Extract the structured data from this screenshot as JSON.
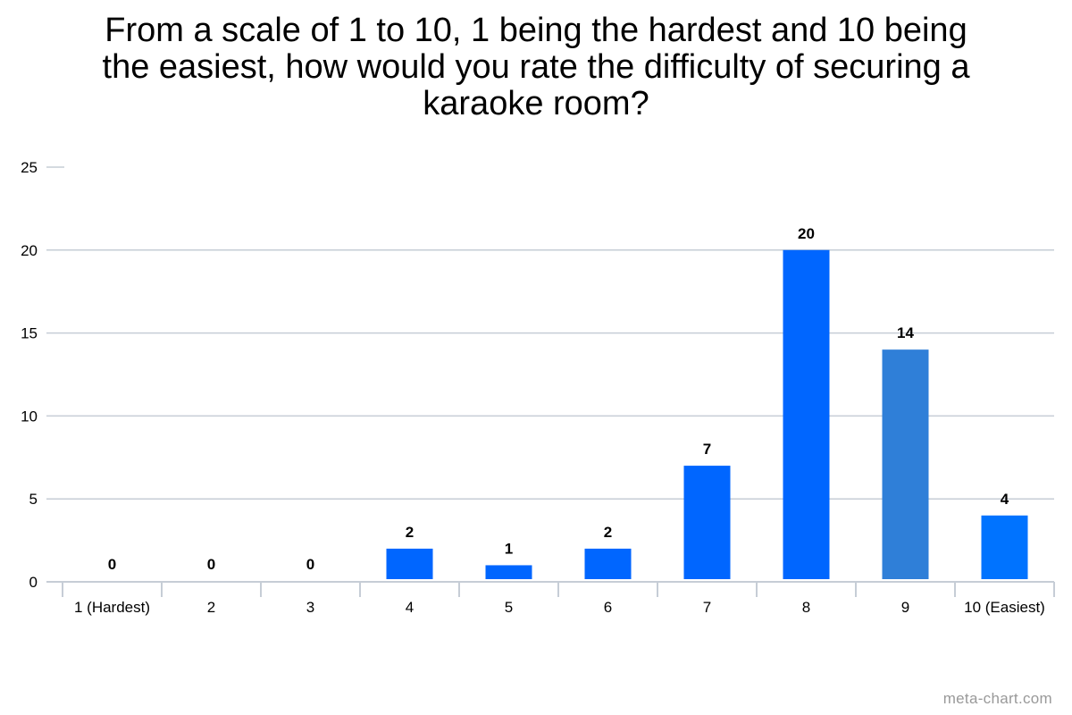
{
  "chart_data": {
    "type": "bar",
    "title_lines": [
      "From a scale of 1 to 10, 1 being the hardest and 10 being",
      "the easiest, how would you rate the difficulty of securing a",
      "karaoke room?"
    ],
    "categories": [
      "1 (Hardest)",
      "2",
      "3",
      "4",
      "5",
      "6",
      "7",
      "8",
      "9",
      "10 (Easiest)"
    ],
    "values": [
      0,
      0,
      0,
      2,
      1,
      2,
      7,
      20,
      14,
      4
    ],
    "bar_colors": [
      "#0066ff",
      "#0066ff",
      "#0066ff",
      "#0066ff",
      "#0066ff",
      "#0066ff",
      "#0066ff",
      "#0066ff",
      "#2f7fd8",
      "#0073ff"
    ],
    "data_labels": true,
    "xlabel": "",
    "ylabel": "",
    "ylim": [
      0,
      25
    ],
    "yticks": [
      0,
      5,
      10,
      15,
      20,
      25
    ],
    "grid": true,
    "legend": "none"
  },
  "watermark": "meta-chart.com"
}
